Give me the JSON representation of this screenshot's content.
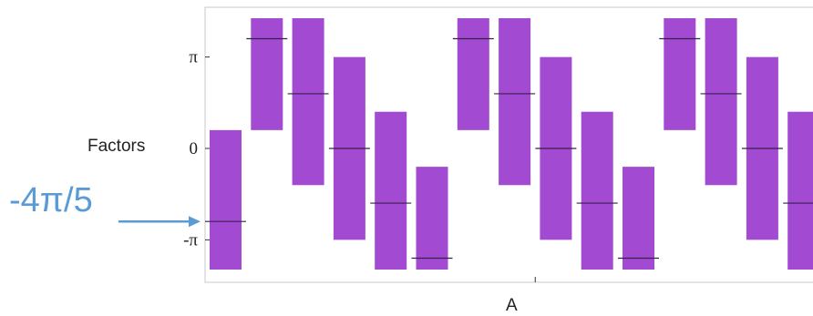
{
  "chart_data": {
    "type": "bar",
    "bar_kind": "floating",
    "title": "",
    "xlabel": "A",
    "ylabel": "Factors",
    "ylim": [
      -4.6,
      4.85
    ],
    "y_ticks": [
      {
        "value": 3.14159,
        "label": "π"
      },
      {
        "value": 0,
        "label": "0"
      },
      {
        "value": -3.14159,
        "label": "-π"
      }
    ],
    "x_ticks": [
      {
        "value": 8.5,
        "label": ""
      }
    ],
    "bar_color": "#a24bd2",
    "center_line_color": "#3a1f4a",
    "bars": [
      {
        "center": -2.51,
        "low": -5.65,
        "high": 0.63
      },
      {
        "center": 3.77,
        "low": 0.63,
        "high": 6.91
      },
      {
        "center": 1.88,
        "low": -1.26,
        "high": 5.03
      },
      {
        "center": 0.0,
        "low": -3.14,
        "high": 3.14
      },
      {
        "center": -1.88,
        "low": -5.03,
        "high": 1.26
      },
      {
        "center": -3.77,
        "low": -6.91,
        "high": -0.63
      },
      {
        "center": 3.77,
        "low": 0.63,
        "high": 6.91
      },
      {
        "center": 1.88,
        "low": -1.26,
        "high": 5.03
      },
      {
        "center": 0.0,
        "low": -3.14,
        "high": 3.14
      },
      {
        "center": -1.88,
        "low": -5.03,
        "high": 1.26
      },
      {
        "center": -3.77,
        "low": -6.91,
        "high": -0.63
      },
      {
        "center": 3.77,
        "low": 0.63,
        "high": 6.91
      },
      {
        "center": 1.88,
        "low": -1.26,
        "high": 5.03
      },
      {
        "center": 0.0,
        "low": -3.14,
        "high": 3.14
      },
      {
        "center": -1.88,
        "low": -5.03,
        "high": 1.26
      }
    ]
  },
  "annotation": {
    "text": "-4π/5",
    "value": -2.51,
    "color": "#5b9bd5"
  }
}
